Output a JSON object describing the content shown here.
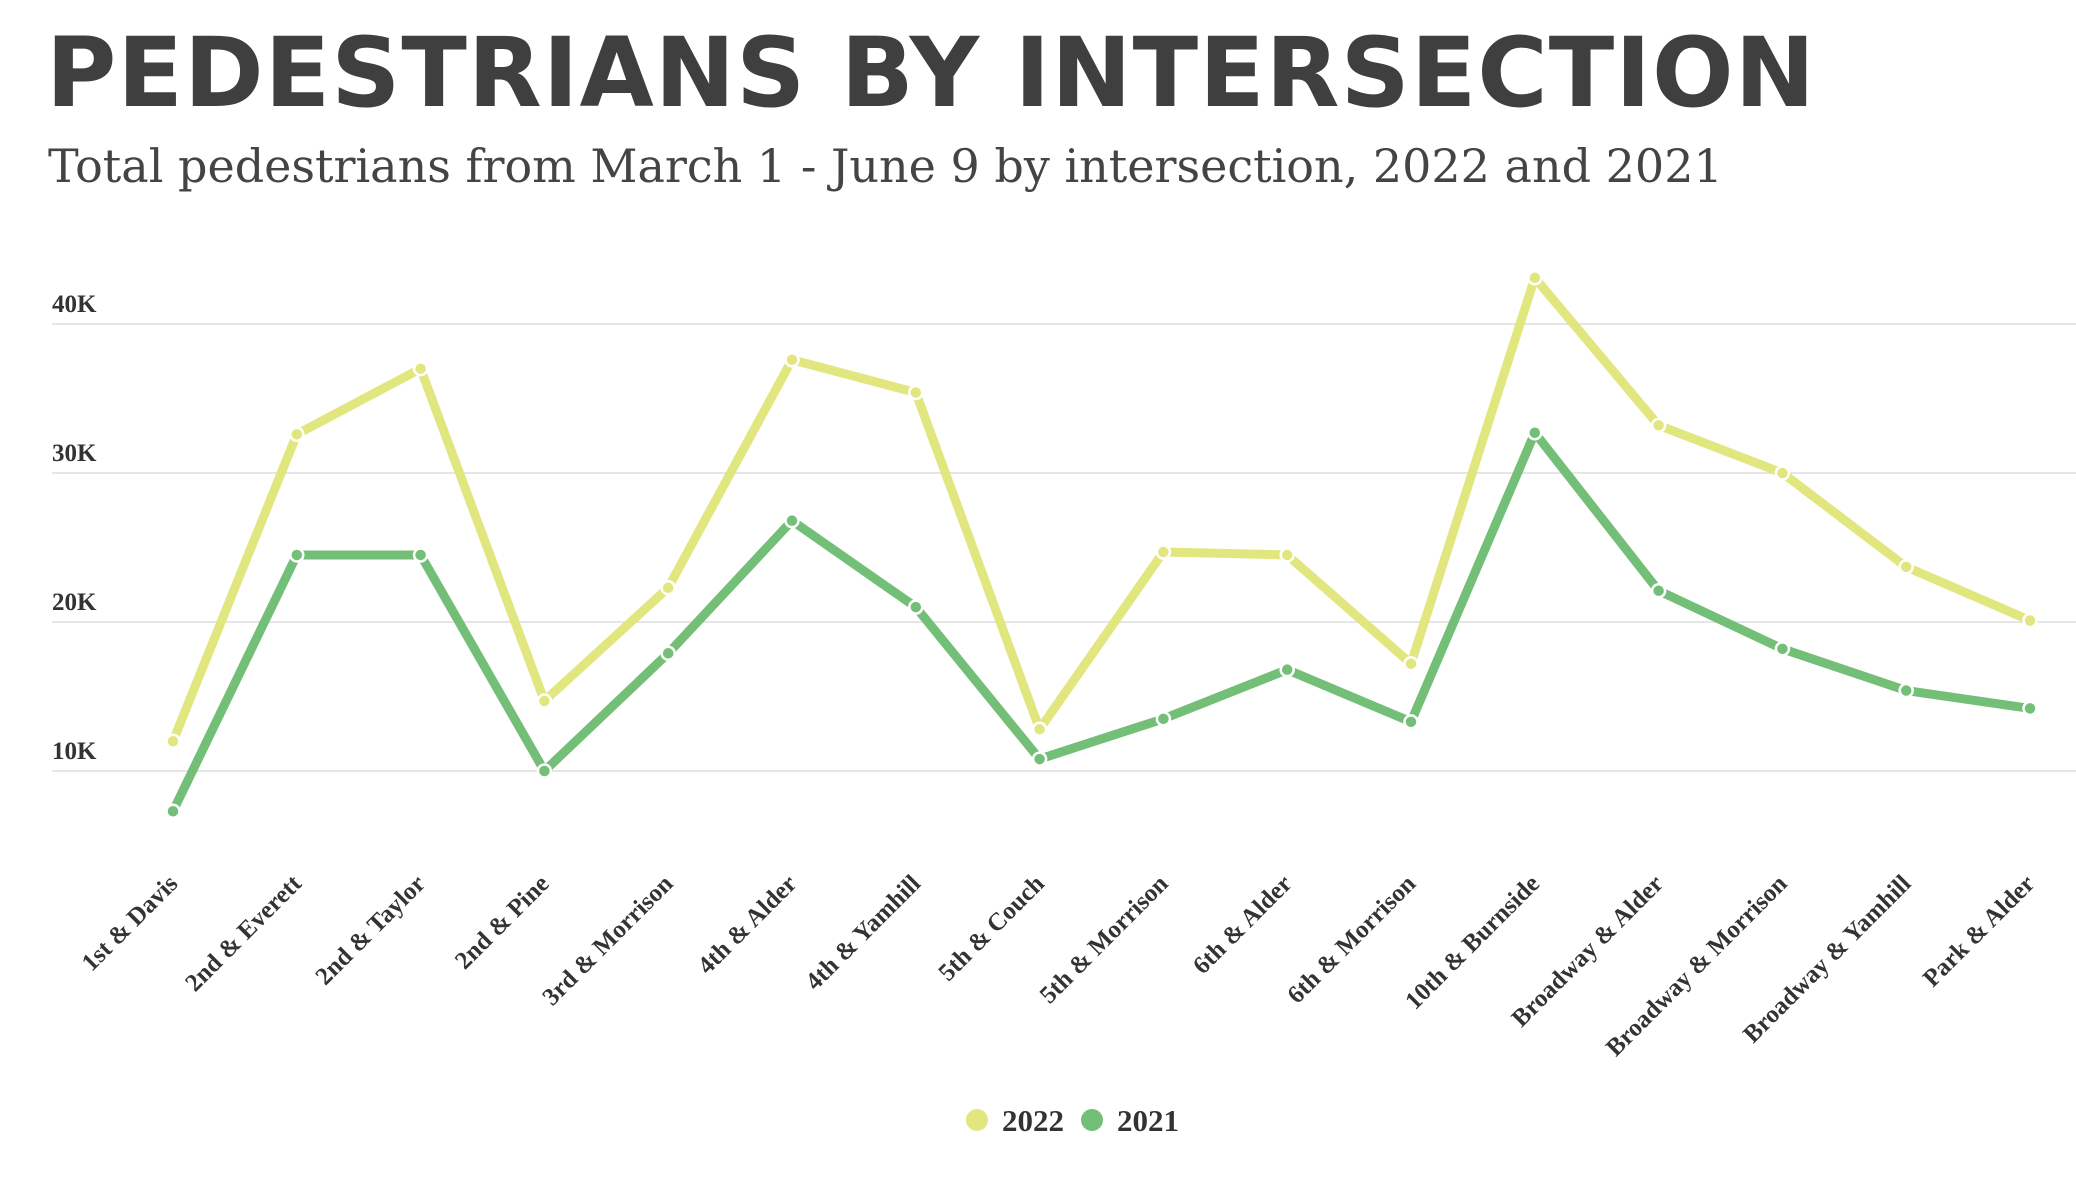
{
  "page": {
    "title": "PEDESTRIANS BY INTERSECTION",
    "subtitle": "Total pedestrians from March 1 - June 9 by intersection, 2022 and 2021"
  },
  "colors": {
    "series_2022": "#e2e67e",
    "series_2021": "#73bf77",
    "gridline": "#dddddd",
    "text": "#333333"
  },
  "chart_data": {
    "type": "line",
    "title": "PEDESTRIANS BY INTERSECTION",
    "subtitle": "Total pedestrians from March 1 - June 9 by intersection, 2022 and 2021",
    "xlabel": "",
    "ylabel": "",
    "categories": [
      "1st & Davis",
      "2nd & Everett",
      "2nd & Taylor",
      "2nd & Pine",
      "3rd & Morrison",
      "4th & Alder",
      "4th & Yamhill",
      "5th & Couch",
      "5th & Morrison",
      "6th & Alder",
      "6th & Morrison",
      "10th & Burnside",
      "Broadway & Alder",
      "Broadway & Morrison",
      "Broadway & Yamhill",
      "Park & Alder"
    ],
    "series": [
      {
        "name": "2022",
        "color": "#e2e67e",
        "values": [
          12000,
          32600,
          37000,
          14700,
          22300,
          37600,
          35400,
          12800,
          24700,
          24500,
          17200,
          43100,
          33200,
          30000,
          23700,
          20100
        ]
      },
      {
        "name": "2021",
        "color": "#73bf77",
        "values": [
          7300,
          24500,
          24500,
          10000,
          17900,
          26800,
          21000,
          10800,
          13500,
          16800,
          13300,
          32700,
          22100,
          18200,
          15400,
          14200
        ]
      }
    ],
    "yticks": [
      10000,
      20000,
      30000,
      40000
    ],
    "ytick_labels": [
      "10K",
      "20K",
      "30K",
      "40K"
    ],
    "ylim": [
      4000,
      47000
    ],
    "grid": true,
    "legend": {
      "position": "bottom-center",
      "entries": [
        "2022",
        "2021"
      ]
    }
  }
}
